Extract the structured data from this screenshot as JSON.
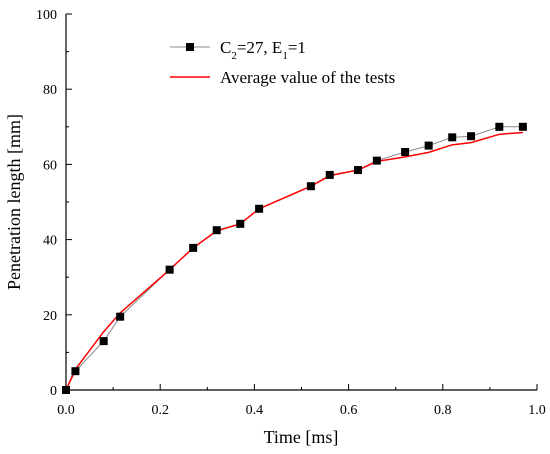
{
  "chart_data": {
    "type": "line",
    "xlabel": "Time [ms]",
    "ylabel": "Penetration length [mm]",
    "xlim": [
      0.0,
      1.0
    ],
    "ylim": [
      0,
      100
    ],
    "x_ticks": [
      "0.0",
      "0.2",
      "0.4",
      "0.6",
      "0.8",
      "1.0"
    ],
    "y_ticks": [
      "0",
      "20",
      "40",
      "60",
      "80",
      "100"
    ],
    "grid": false,
    "legend_position": "top-center",
    "series": [
      {
        "name": "C2=27, E1=1",
        "legend_parts": [
          {
            "text": "C",
            "sub": false
          },
          {
            "text": "2",
            "sub": true
          },
          {
            "text": "=27, E",
            "sub": false
          },
          {
            "text": "1",
            "sub": true
          },
          {
            "text": "=1",
            "sub": false
          }
        ],
        "color": "#000000",
        "line_color": "#888888",
        "marker": "square",
        "x": [
          0.0,
          0.02,
          0.08,
          0.115,
          0.22,
          0.27,
          0.32,
          0.37,
          0.41,
          0.52,
          0.56,
          0.62,
          0.66,
          0.72,
          0.77,
          0.82,
          0.86,
          0.92,
          0.97
        ],
        "y": [
          0,
          5,
          13,
          19.5,
          32,
          37.8,
          42.5,
          44.2,
          48.2,
          54.2,
          57.2,
          58.5,
          61,
          63.3,
          65,
          67.2,
          67.5,
          70,
          70
        ]
      },
      {
        "name": "Average value of the tests",
        "color": "#ff0000",
        "marker": "none",
        "x": [
          0.0,
          0.02,
          0.08,
          0.115,
          0.22,
          0.27,
          0.32,
          0.37,
          0.41,
          0.52,
          0.56,
          0.62,
          0.66,
          0.72,
          0.77,
          0.82,
          0.86,
          0.92,
          0.97
        ],
        "y": [
          0,
          5.5,
          15.5,
          20.5,
          32,
          37.8,
          42.3,
          44.2,
          48.2,
          54.2,
          57,
          58.5,
          60.8,
          62,
          63.2,
          65.2,
          65.8,
          68,
          68.5
        ]
      }
    ]
  }
}
